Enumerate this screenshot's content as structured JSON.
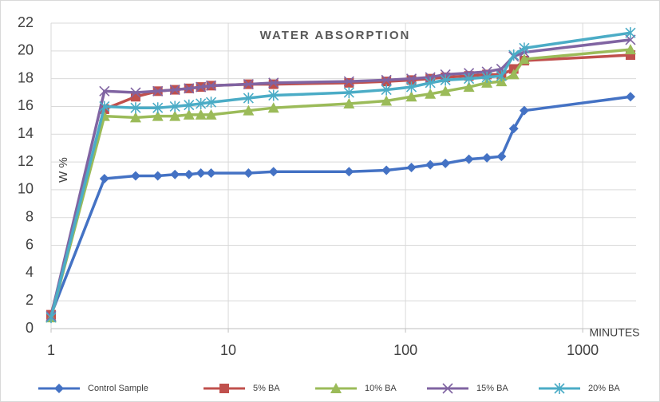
{
  "chart_data": {
    "type": "line",
    "title": "WATER ABSORPTION",
    "ylabel": "W %",
    "xlabel": "MINUTES",
    "xscale": "log",
    "x": [
      1,
      2,
      3,
      4,
      5,
      6,
      7,
      8,
      13,
      18,
      48,
      78,
      108,
      138,
      168,
      228,
      288,
      348,
      408,
      468,
      1860
    ],
    "xlim": [
      1,
      2000
    ],
    "xticks": [
      1,
      10,
      100,
      1000
    ],
    "ylim": [
      0,
      22
    ],
    "yticks": [
      0,
      2,
      4,
      6,
      8,
      10,
      12,
      14,
      16,
      18,
      20,
      22
    ],
    "grid": true,
    "legend": "bottom",
    "series": [
      {
        "name": "Control Sample",
        "color": "#4472c4",
        "marker": "diamond",
        "values": [
          1,
          10.8,
          11.0,
          11.0,
          11.1,
          11.1,
          11.2,
          11.2,
          11.2,
          11.3,
          11.3,
          11.4,
          11.6,
          11.8,
          11.9,
          12.2,
          12.3,
          12.4,
          14.4,
          15.7,
          16.7
        ]
      },
      {
        "name": "5% BA",
        "color": "#c0504d",
        "marker": "square",
        "values": [
          1,
          15.8,
          16.7,
          17.1,
          17.2,
          17.3,
          17.4,
          17.5,
          17.6,
          17.6,
          17.7,
          17.8,
          17.9,
          18.0,
          18.1,
          18.2,
          18.3,
          18.3,
          18.7,
          19.3,
          19.7
        ]
      },
      {
        "name": "10% BA",
        "color": "#9bbb59",
        "marker": "triangle",
        "values": [
          0.8,
          15.3,
          15.2,
          15.3,
          15.3,
          15.4,
          15.4,
          15.4,
          15.7,
          15.9,
          16.2,
          16.4,
          16.7,
          16.9,
          17.1,
          17.4,
          17.7,
          17.8,
          18.3,
          19.4,
          20.1
        ]
      },
      {
        "name": "15% BA",
        "color": "#8064a2",
        "marker": "x",
        "values": [
          0.9,
          17.1,
          17.0,
          17.1,
          17.2,
          17.3,
          17.4,
          17.5,
          17.6,
          17.7,
          17.8,
          17.9,
          18.0,
          18.1,
          18.3,
          18.4,
          18.5,
          18.7,
          19.6,
          19.9,
          20.8
        ]
      },
      {
        "name": "20% BA",
        "color": "#4bacc6",
        "marker": "star",
        "values": [
          0.8,
          16.0,
          15.9,
          15.9,
          16.0,
          16.1,
          16.2,
          16.3,
          16.6,
          16.8,
          17.0,
          17.2,
          17.4,
          17.7,
          17.9,
          18.0,
          18.1,
          18.2,
          19.7,
          20.2,
          21.3
        ]
      }
    ]
  }
}
